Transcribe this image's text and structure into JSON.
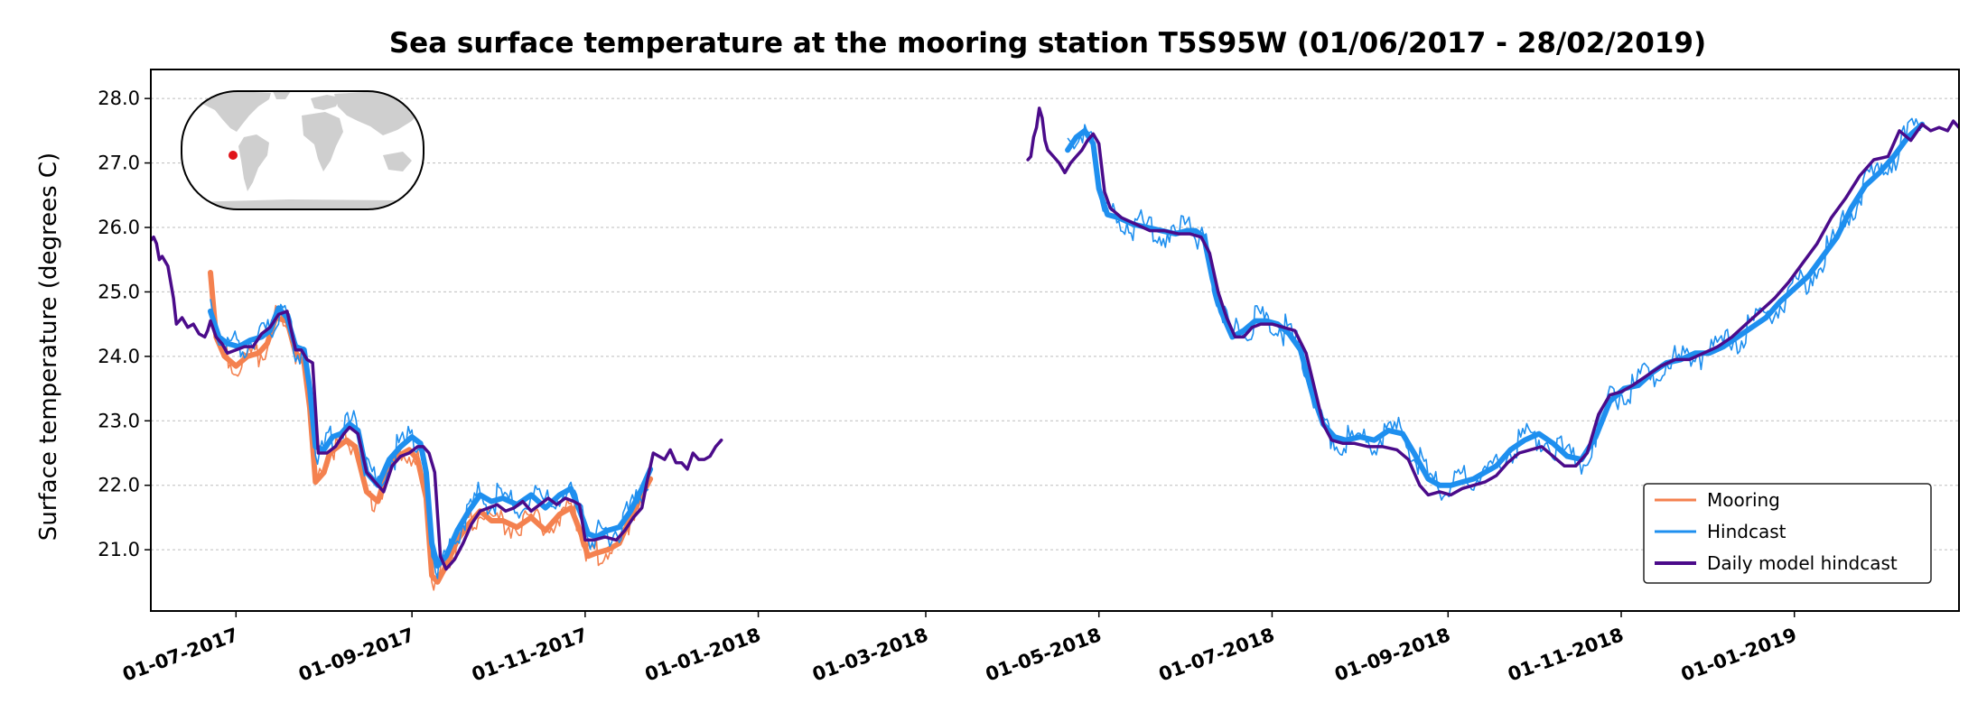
{
  "colors": {
    "mooring": "#f4814f",
    "hindcast": "#1e8fef",
    "daily": "#4b0b8a",
    "grid": "#bdbdbd",
    "land": "#cfcfcf",
    "marker": "#e0141a"
  },
  "chart_data": {
    "type": "line",
    "title": "Sea surface temperature at the mooring station T5S95W (01/06/2017 - 28/02/2019)",
    "xlabel": "",
    "ylabel": "Surface temperature (degrees C)",
    "xlim": [
      "2017-06-01",
      "2019-02-28"
    ],
    "ylim": [
      20.05,
      28.45
    ],
    "yticks": [
      "21.0",
      "22.0",
      "23.0",
      "24.0",
      "25.0",
      "26.0",
      "27.0",
      "28.0"
    ],
    "xticks": [
      {
        "date": "2017-07-01",
        "label": "01-07-2017"
      },
      {
        "date": "2017-09-01",
        "label": "01-09-2017"
      },
      {
        "date": "2017-11-01",
        "label": "01-11-2017"
      },
      {
        "date": "2018-01-01",
        "label": "01-01-2018"
      },
      {
        "date": "2018-03-01",
        "label": "01-03-2018"
      },
      {
        "date": "2018-05-01",
        "label": "01-05-2018"
      },
      {
        "date": "2018-07-01",
        "label": "01-07-2018"
      },
      {
        "date": "2018-09-01",
        "label": "01-09-2018"
      },
      {
        "date": "2018-11-01",
        "label": "01-11-2018"
      },
      {
        "date": "2019-01-01",
        "label": "01-01-2019"
      }
    ],
    "grid": "horizontal",
    "legend_position": "bottom-right",
    "inset_map": {
      "marker": "5S 95W"
    },
    "series": [
      {
        "name": "Mooring",
        "segments": [
          {
            "x": [
              "2017-06-22",
              "2017-06-24",
              "2017-06-27",
              "2017-07-01",
              "2017-07-05",
              "2017-07-09",
              "2017-07-12",
              "2017-07-15",
              "2017-07-19",
              "2017-07-22",
              "2017-07-25",
              "2017-07-27",
              "2017-07-29",
              "2017-08-01",
              "2017-08-03",
              "2017-08-06",
              "2017-08-09",
              "2017-08-12",
              "2017-08-16",
              "2017-08-20",
              "2017-08-23",
              "2017-08-27",
              "2017-08-31",
              "2017-09-03",
              "2017-09-06",
              "2017-09-08",
              "2017-09-10",
              "2017-09-13",
              "2017-09-17",
              "2017-09-21",
              "2017-09-25",
              "2017-09-29",
              "2017-10-03",
              "2017-10-08",
              "2017-10-13",
              "2017-10-18",
              "2017-10-23",
              "2017-10-27",
              "2017-10-31",
              "2017-11-02",
              "2017-11-05",
              "2017-11-09",
              "2017-11-13",
              "2017-11-17",
              "2017-11-21",
              "2017-11-24"
            ],
            "y": [
              25.3,
              24.3,
              24.0,
              23.85,
              24.0,
              24.05,
              24.2,
              24.6,
              24.55,
              24.05,
              23.9,
              23.2,
              22.05,
              22.2,
              22.5,
              22.6,
              22.7,
              22.6,
              21.9,
              21.75,
              22.2,
              22.45,
              22.55,
              22.4,
              21.8,
              20.6,
              20.5,
              20.75,
              21.15,
              21.4,
              21.6,
              21.45,
              21.45,
              21.35,
              21.5,
              21.3,
              21.55,
              21.65,
              21.2,
              20.9,
              20.95,
              21.0,
              21.1,
              21.5,
              21.85,
              22.1
            ]
          }
        ]
      },
      {
        "name": "Hindcast",
        "segments": [
          {
            "x": [
              "2017-06-22",
              "2017-06-25",
              "2017-06-28",
              "2017-07-02",
              "2017-07-06",
              "2017-07-10",
              "2017-07-13",
              "2017-07-16",
              "2017-07-19",
              "2017-07-22",
              "2017-07-25",
              "2017-07-27",
              "2017-07-29",
              "2017-08-01",
              "2017-08-04",
              "2017-08-07",
              "2017-08-10",
              "2017-08-13",
              "2017-08-16",
              "2017-08-20",
              "2017-08-24",
              "2017-08-28",
              "2017-09-01",
              "2017-09-04",
              "2017-09-06",
              "2017-09-08",
              "2017-09-10",
              "2017-09-13",
              "2017-09-17",
              "2017-09-21",
              "2017-09-25",
              "2017-09-29",
              "2017-10-03",
              "2017-10-08",
              "2017-10-13",
              "2017-10-18",
              "2017-10-23",
              "2017-10-27",
              "2017-10-31",
              "2017-11-02",
              "2017-11-05",
              "2017-11-09",
              "2017-11-13",
              "2017-11-17",
              "2017-11-21",
              "2017-11-24"
            ],
            "y": [
              24.7,
              24.3,
              24.2,
              24.15,
              24.25,
              24.3,
              24.4,
              24.75,
              24.6,
              24.15,
              24.1,
              23.5,
              22.6,
              22.55,
              22.75,
              22.8,
              22.95,
              22.85,
              22.2,
              22.0,
              22.4,
              22.6,
              22.75,
              22.65,
              22.2,
              21.1,
              20.75,
              20.9,
              21.3,
              21.6,
              21.85,
              21.75,
              21.8,
              21.7,
              21.85,
              21.65,
              21.85,
              21.95,
              21.5,
              21.25,
              21.2,
              21.3,
              21.35,
              21.6,
              21.95,
              22.25
            ]
          },
          {
            "x": [
              "2018-04-20",
              "2018-04-23",
              "2018-04-26",
              "2018-04-29",
              "2018-05-01",
              "2018-05-04",
              "2018-05-08",
              "2018-05-13",
              "2018-05-18",
              "2018-05-23",
              "2018-05-28",
              "2018-06-01",
              "2018-06-04",
              "2018-06-07",
              "2018-06-10",
              "2018-06-13",
              "2018-06-17",
              "2018-06-21",
              "2018-06-25",
              "2018-06-29",
              "2018-07-03",
              "2018-07-07",
              "2018-07-11",
              "2018-07-15",
              "2018-07-19",
              "2018-07-23",
              "2018-07-27",
              "2018-08-01",
              "2018-08-06",
              "2018-08-11",
              "2018-08-16",
              "2018-08-20",
              "2018-08-25",
              "2018-08-29",
              "2018-09-02",
              "2018-09-06",
              "2018-09-10",
              "2018-09-14",
              "2018-09-18",
              "2018-09-23",
              "2018-09-28",
              "2018-10-03",
              "2018-10-08",
              "2018-10-13",
              "2018-10-18",
              "2018-10-23",
              "2018-10-28",
              "2018-11-02",
              "2018-11-07",
              "2018-11-12",
              "2018-11-17",
              "2018-11-22",
              "2018-11-27",
              "2018-12-02",
              "2018-12-07",
              "2018-12-12",
              "2018-12-17",
              "2018-12-22",
              "2018-12-27",
              "2019-01-01",
              "2019-01-06",
              "2019-01-11",
              "2019-01-16",
              "2019-01-21",
              "2019-01-26",
              "2019-01-31",
              "2019-02-05",
              "2019-02-10",
              "2019-02-15"
            ],
            "y": [
              27.2,
              27.4,
              27.5,
              27.3,
              26.6,
              26.2,
              26.15,
              26.05,
              26.0,
              25.95,
              25.9,
              25.95,
              25.95,
              25.85,
              25.2,
              24.7,
              24.3,
              24.4,
              24.55,
              24.55,
              24.5,
              24.35,
              24.1,
              23.45,
              22.95,
              22.75,
              22.7,
              22.75,
              22.7,
              22.85,
              22.8,
              22.5,
              22.1,
              22.0,
              22.0,
              22.05,
              22.1,
              22.2,
              22.3,
              22.55,
              22.7,
              22.8,
              22.65,
              22.45,
              22.4,
              22.75,
              23.3,
              23.5,
              23.55,
              23.75,
              23.9,
              23.95,
              24.05,
              24.05,
              24.15,
              24.3,
              24.45,
              24.6,
              24.85,
              25.05,
              25.25,
              25.55,
              25.85,
              26.3,
              26.65,
              26.85,
              27.1,
              27.4,
              27.6
            ]
          }
        ]
      },
      {
        "name": "Daily model hindcast",
        "segments": [
          {
            "x": [
              "2017-06-01",
              "2017-06-02",
              "2017-06-03",
              "2017-06-04",
              "2017-06-05",
              "2017-06-07",
              "2017-06-09",
              "2017-06-10",
              "2017-06-12",
              "2017-06-14",
              "2017-06-16",
              "2017-06-18",
              "2017-06-20",
              "2017-06-21",
              "2017-06-22",
              "2017-06-24",
              "2017-06-26",
              "2017-06-28",
              "2017-07-01",
              "2017-07-04",
              "2017-07-07",
              "2017-07-10",
              "2017-07-13",
              "2017-07-16",
              "2017-07-19",
              "2017-07-22",
              "2017-07-24",
              "2017-07-26",
              "2017-07-28",
              "2017-07-30",
              "2017-08-02",
              "2017-08-05",
              "2017-08-08",
              "2017-08-10",
              "2017-08-13",
              "2017-08-16",
              "2017-08-19",
              "2017-08-22",
              "2017-08-25",
              "2017-08-28",
              "2017-08-31",
              "2017-09-03",
              "2017-09-05",
              "2017-09-07",
              "2017-09-09",
              "2017-09-11",
              "2017-09-13",
              "2017-09-16",
              "2017-09-19",
              "2017-09-22",
              "2017-09-25",
              "2017-09-28",
              "2017-10-01",
              "2017-10-04",
              "2017-10-07",
              "2017-10-10",
              "2017-10-13",
              "2017-10-16",
              "2017-10-19",
              "2017-10-22",
              "2017-10-25",
              "2017-10-28",
              "2017-10-30",
              "2017-11-01",
              "2017-11-04",
              "2017-11-08",
              "2017-11-12",
              "2017-11-15",
              "2017-11-18",
              "2017-11-21",
              "2017-11-23",
              "2017-11-25",
              "2017-11-27",
              "2017-11-29",
              "2017-12-01",
              "2017-12-03",
              "2017-12-05",
              "2017-12-07",
              "2017-12-09",
              "2017-12-11",
              "2017-12-13",
              "2017-12-15",
              "2017-12-17",
              "2017-12-19"
            ],
            "y": [
              25.8,
              25.85,
              25.75,
              25.5,
              25.55,
              25.4,
              24.9,
              24.5,
              24.6,
              24.45,
              24.5,
              24.35,
              24.3,
              24.4,
              24.55,
              24.3,
              24.2,
              24.05,
              24.1,
              24.15,
              24.15,
              24.35,
              24.45,
              24.65,
              24.7,
              24.1,
              24.1,
              23.95,
              23.9,
              22.5,
              22.5,
              22.6,
              22.8,
              22.9,
              22.8,
              22.2,
              22.05,
              21.9,
              22.3,
              22.45,
              22.5,
              22.6,
              22.6,
              22.5,
              22.2,
              20.9,
              20.7,
              20.85,
              21.1,
              21.4,
              21.6,
              21.65,
              21.7,
              21.6,
              21.65,
              21.75,
              21.6,
              21.7,
              21.8,
              21.7,
              21.8,
              21.75,
              21.7,
              21.15,
              21.15,
              21.2,
              21.15,
              21.3,
              21.5,
              21.65,
              22.1,
              22.5,
              22.45,
              22.4,
              22.55,
              22.35,
              22.35,
              22.25,
              22.5,
              22.4,
              22.4,
              22.45,
              22.6,
              22.7
            ]
          },
          {
            "x": [
              "2018-04-06",
              "2018-04-07",
              "2018-04-08",
              "2018-04-09",
              "2018-04-10",
              "2018-04-11",
              "2018-04-12",
              "2018-04-13",
              "2018-04-15",
              "2018-04-17",
              "2018-04-19",
              "2018-04-21",
              "2018-04-23",
              "2018-04-25",
              "2018-04-27",
              "2018-04-29",
              "2018-05-01",
              "2018-05-03",
              "2018-05-05",
              "2018-05-09",
              "2018-05-14",
              "2018-05-19",
              "2018-05-24",
              "2018-05-29",
              "2018-06-02",
              "2018-06-06",
              "2018-06-09",
              "2018-06-12",
              "2018-06-15",
              "2018-06-18",
              "2018-06-21",
              "2018-06-24",
              "2018-06-27",
              "2018-07-01",
              "2018-07-05",
              "2018-07-09",
              "2018-07-13",
              "2018-07-16",
              "2018-07-19",
              "2018-07-22",
              "2018-07-26",
              "2018-07-30",
              "2018-08-04",
              "2018-08-09",
              "2018-08-14",
              "2018-08-18",
              "2018-08-22",
              "2018-08-25",
              "2018-08-29",
              "2018-09-02",
              "2018-09-06",
              "2018-09-10",
              "2018-09-14",
              "2018-09-18",
              "2018-09-22",
              "2018-09-26",
              "2018-09-30",
              "2018-10-04",
              "2018-10-08",
              "2018-10-12",
              "2018-10-16",
              "2018-10-20",
              "2018-10-24",
              "2018-10-28",
              "2018-11-01",
              "2018-11-05",
              "2018-11-10",
              "2018-11-15",
              "2018-11-20",
              "2018-11-25",
              "2018-11-30",
              "2018-12-05",
              "2018-12-10",
              "2018-12-15",
              "2018-12-20",
              "2018-12-25",
              "2018-12-30",
              "2019-01-04",
              "2019-01-09",
              "2019-01-14",
              "2019-01-19",
              "2019-01-24",
              "2019-01-29",
              "2019-02-03",
              "2019-02-07",
              "2019-02-11",
              "2019-02-15",
              "2019-02-18",
              "2019-02-21",
              "2019-02-24",
              "2019-02-26",
              "2019-02-28"
            ],
            "y": [
              27.05,
              27.1,
              27.4,
              27.55,
              27.85,
              27.7,
              27.35,
              27.2,
              27.1,
              27.0,
              26.85,
              27.0,
              27.1,
              27.2,
              27.35,
              27.45,
              27.3,
              26.55,
              26.3,
              26.15,
              26.05,
              25.95,
              25.95,
              25.9,
              25.9,
              25.85,
              25.6,
              25.0,
              24.6,
              24.3,
              24.3,
              24.45,
              24.5,
              24.5,
              24.45,
              24.4,
              24.05,
              23.5,
              22.95,
              22.7,
              22.65,
              22.65,
              22.6,
              22.6,
              22.55,
              22.4,
              22.0,
              21.85,
              21.9,
              21.85,
              21.95,
              22.0,
              22.05,
              22.15,
              22.35,
              22.5,
              22.55,
              22.6,
              22.45,
              22.3,
              22.3,
              22.5,
              23.1,
              23.4,
              23.45,
              23.55,
              23.7,
              23.85,
              23.95,
              23.95,
              24.05,
              24.15,
              24.3,
              24.5,
              24.7,
              24.9,
              25.15,
              25.45,
              25.75,
              26.15,
              26.45,
              26.8,
              27.05,
              27.1,
              27.5,
              27.35,
              27.6,
              27.5,
              27.55,
              27.5,
              27.65,
              27.55
            ]
          }
        ]
      }
    ]
  }
}
